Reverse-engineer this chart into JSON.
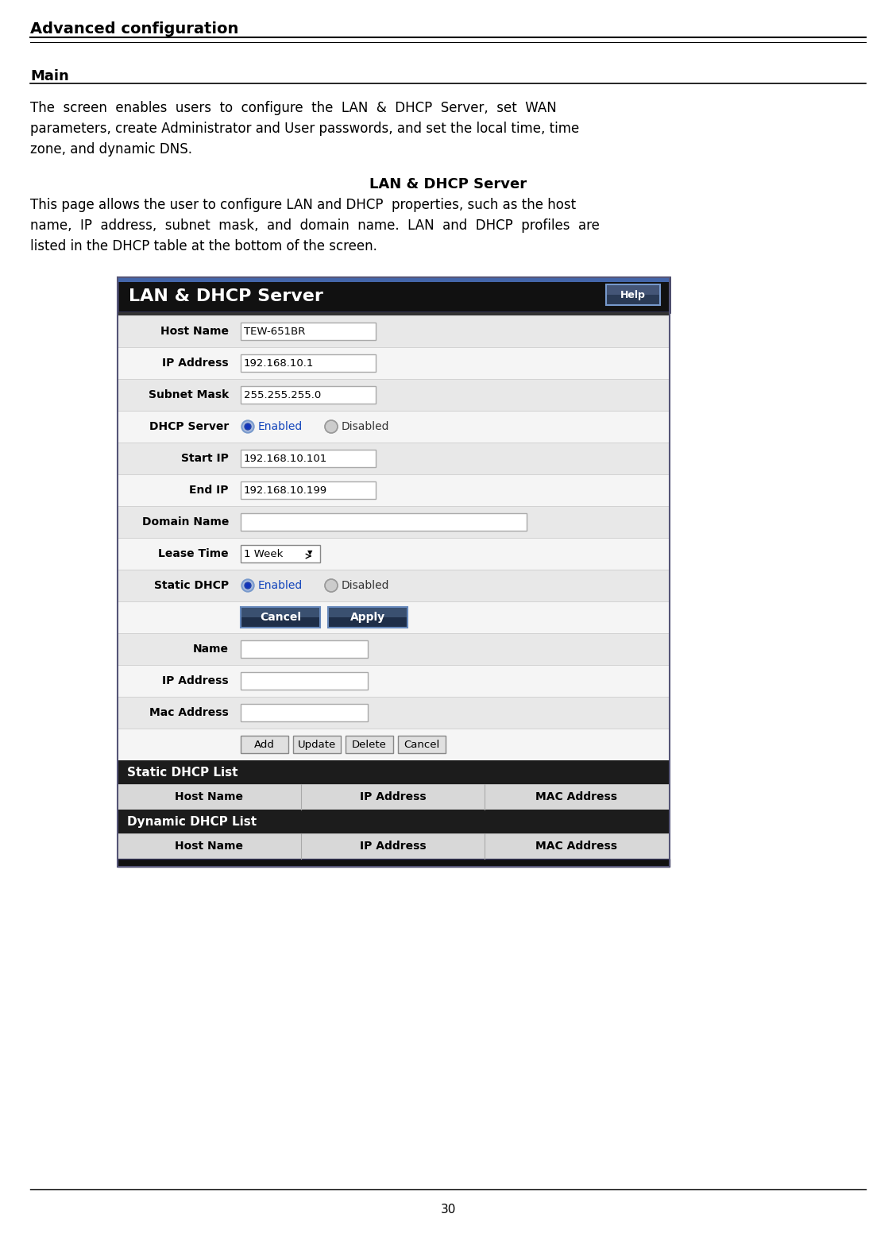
{
  "title": "Advanced configuration",
  "section_title": "Main",
  "body_lines": [
    "The  screen  enables  users  to  configure  the  LAN  &  DHCP  Server,  set  WAN",
    "parameters, create Administrator and User passwords, and set the local time, time",
    "zone, and dynamic DNS."
  ],
  "lan_dhcp_title": "LAN & DHCP Server",
  "desc_lines": [
    "This page allows the user to configure LAN and DHCP  properties, such as the host",
    "name,  IP  address,  subnet  mask,  and  domain  name.  LAN  and  DHCP  profiles  are",
    "listed in the DHCP table at the bottom of the screen."
  ],
  "page_number": "30",
  "panel_title": "LAN & DHCP Server",
  "help_btn": "Help",
  "rows": [
    {
      "label": "Host Name",
      "type": "input",
      "value": "TEW-651BR"
    },
    {
      "label": "IP Address",
      "type": "input",
      "value": "192.168.10.1"
    },
    {
      "label": "Subnet Mask",
      "type": "input",
      "value": "255.255.255.0"
    },
    {
      "label": "DHCP Server",
      "type": "radio",
      "value": ""
    },
    {
      "label": "Start IP",
      "type": "input",
      "value": "192.168.10.101"
    },
    {
      "label": "End IP",
      "type": "input",
      "value": "192.168.10.199"
    },
    {
      "label": "Domain Name",
      "type": "input_wide",
      "value": ""
    },
    {
      "label": "Lease Time",
      "type": "dropdown",
      "value": "1 Week"
    },
    {
      "label": "Static DHCP",
      "type": "radio",
      "value": ""
    },
    {
      "label": "",
      "type": "btn_blue",
      "value": ""
    },
    {
      "label": "Name",
      "type": "input",
      "value": ""
    },
    {
      "label": "IP Address",
      "type": "input",
      "value": ""
    },
    {
      "label": "Mac Address",
      "type": "input",
      "value": ""
    },
    {
      "label": "",
      "type": "btn_gray",
      "value": ""
    }
  ],
  "static_header": "Static DHCP List",
  "static_cols": [
    "Host Name",
    "IP Address",
    "MAC Address"
  ],
  "dynamic_header": "Dynamic DHCP List",
  "dynamic_cols": [
    "Host Name",
    "IP Address",
    "MAC Address"
  ],
  "bg": "#ffffff",
  "panel_dark": "#1c1c1c",
  "panel_border_dark": "#555577",
  "row_alt": "#e8e8e8",
  "row_white": "#f5f5f5",
  "input_bg": "#ffffff",
  "input_border": "#aaaaaa",
  "col_header_bg": "#d8d8d8",
  "col_border": "#aaaaaa",
  "blue_btn": "#3a5070",
  "blue_btn_border": "#6688bb",
  "gray_btn_bg": "#e0e0e0",
  "gray_btn_border": "#888888",
  "radio_fill": "#2255bb",
  "radio_empty": "#bbbbbb",
  "title_fs": 14,
  "section_fs": 13,
  "body_fs": 12,
  "panel_title_fs": 16,
  "field_fs": 10,
  "btn_fs": 10,
  "col_fs": 10,
  "page_fs": 11
}
